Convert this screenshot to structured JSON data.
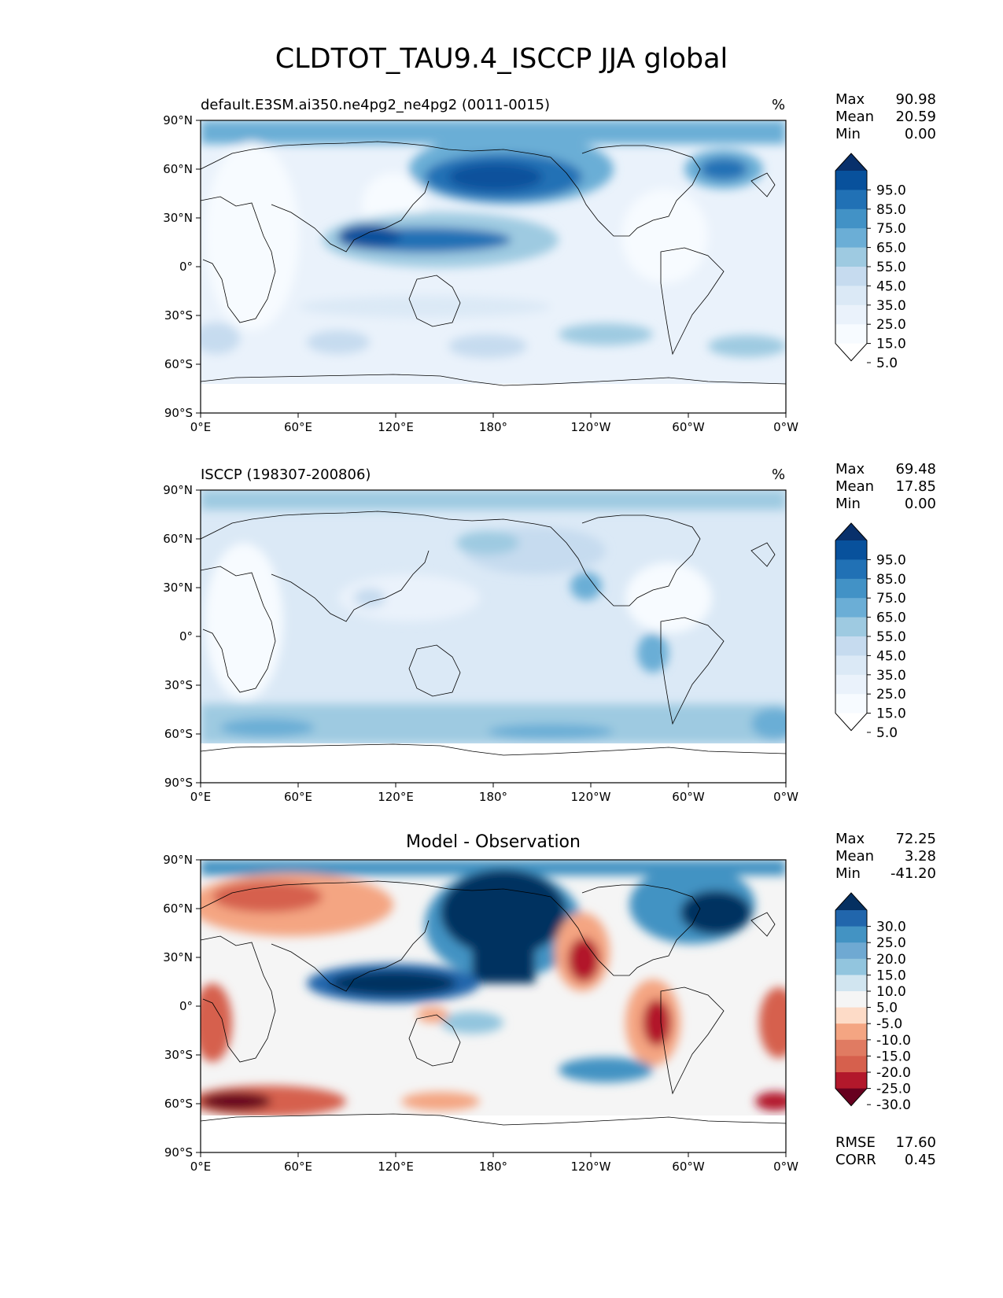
{
  "title": "CLDTOT_TAU9.4_ISCCP JJA global",
  "axes": {
    "lat_ticks": [
      "90°N",
      "60°N",
      "30°N",
      "0°",
      "30°S",
      "60°S",
      "90°S"
    ],
    "lon_ticks": [
      "0°E",
      "60°E",
      "120°E",
      "180°",
      "120°W",
      "60°W",
      "0°W"
    ]
  },
  "panels": [
    {
      "name": "model",
      "title": "default.E3SM.ai350.ne4pg2_ne4pg2 (0011-0015)",
      "units": "%",
      "stats": {
        "max_label": "Max",
        "max": "90.98",
        "mean_label": "Mean",
        "mean": "20.59",
        "min_label": "Min",
        "min": "0.00"
      },
      "colorbar": {
        "labels": [
          "95.0",
          "85.0",
          "75.0",
          "65.0",
          "55.0",
          "45.0",
          "35.0",
          "25.0",
          "15.0",
          "5.0"
        ],
        "colors": [
          "#08306b",
          "#08519c",
          "#2171b5",
          "#4292c6",
          "#6baed6",
          "#9ecae1",
          "#c6dbef",
          "#dbe9f6",
          "#eaf2fb",
          "#f7fbff",
          "#ffffff"
        ]
      }
    },
    {
      "name": "observation",
      "title": "ISCCP (198307-200806)",
      "units": "%",
      "stats": {
        "max_label": "Max",
        "max": "69.48",
        "mean_label": "Mean",
        "mean": "17.85",
        "min_label": "Min",
        "min": "0.00"
      },
      "colorbar": {
        "labels": [
          "95.0",
          "85.0",
          "75.0",
          "65.0",
          "55.0",
          "45.0",
          "35.0",
          "25.0",
          "15.0",
          "5.0"
        ],
        "colors": [
          "#08306b",
          "#08519c",
          "#2171b5",
          "#4292c6",
          "#6baed6",
          "#9ecae1",
          "#c6dbef",
          "#dbe9f6",
          "#eaf2fb",
          "#f7fbff",
          "#ffffff"
        ]
      }
    },
    {
      "name": "difference",
      "title": "Model - Observation",
      "units": "",
      "stats": {
        "max_label": "Max",
        "max": "72.25",
        "mean_label": "Mean",
        "mean": "3.28",
        "min_label": "Min",
        "min": "-41.20"
      },
      "colorbar": {
        "labels": [
          "30.0",
          "25.0",
          "20.0",
          "15.0",
          "10.0",
          "5.0",
          "-5.0",
          "-10.0",
          "-15.0",
          "-20.0",
          "-25.0",
          "-30.0"
        ],
        "colors": [
          "#053061",
          "#2166ac",
          "#4393c3",
          "#6fa9d2",
          "#92c5de",
          "#d1e5f0",
          "#f5f5f5",
          "#fddbc7",
          "#f4a582",
          "#e07b62",
          "#d6604d",
          "#b2182b",
          "#67001f"
        ]
      },
      "metrics": {
        "rmse_label": "RMSE",
        "rmse": "17.60",
        "corr_label": "CORR",
        "corr": "0.45"
      }
    }
  ]
}
